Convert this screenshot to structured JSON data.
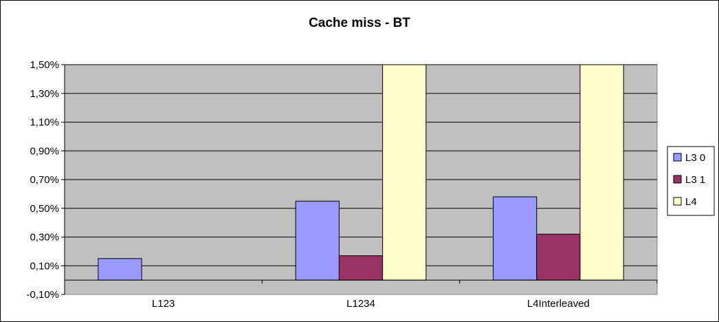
{
  "chart_data": {
    "type": "bar",
    "title": "Cache miss - BT",
    "xlabel": "",
    "ylabel": "",
    "categories": [
      "L123",
      "L1234",
      "L4Interleaved"
    ],
    "series": [
      {
        "name": "L3 0",
        "color": "#9999ff",
        "values": [
          0.15,
          0.55,
          0.58
        ]
      },
      {
        "name": "L3 1",
        "color": "#993366",
        "values": [
          0.0,
          0.17,
          0.32
        ]
      },
      {
        "name": "L4",
        "color": "#ffffcc",
        "values": [
          0.0,
          1.6,
          1.6
        ]
      }
    ],
    "ylim": [
      -0.1,
      1.5
    ],
    "yticks": [
      -0.1,
      0.1,
      0.3,
      0.5,
      0.7,
      0.9,
      1.1,
      1.3,
      1.5
    ],
    "ytick_labels": [
      "-0,10%",
      "0,10%",
      "0,30%",
      "0,50%",
      "0,70%",
      "0,90%",
      "1,10%",
      "1,30%",
      "1,50%"
    ],
    "grid": true,
    "plot_background": "#c0c0c0",
    "legend_position": "right"
  }
}
